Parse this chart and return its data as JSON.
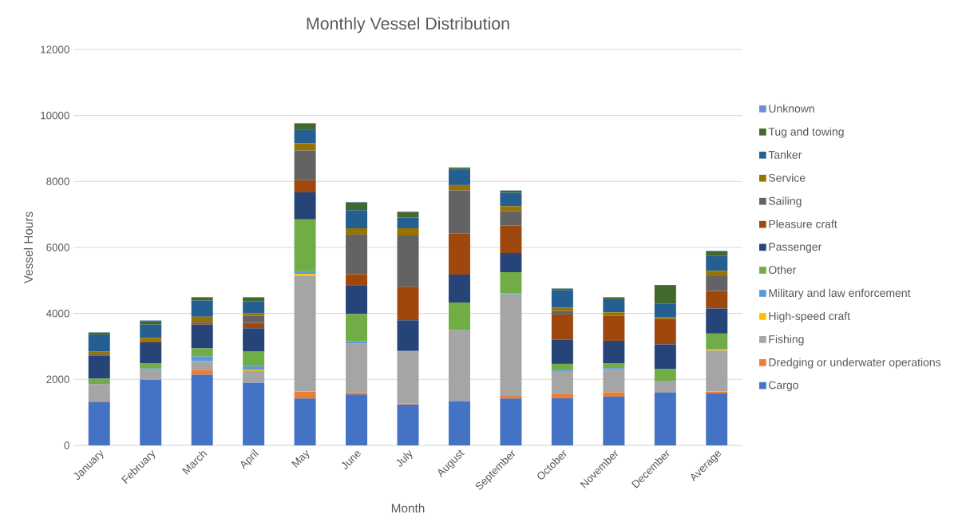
{
  "chart_data": {
    "type": "bar",
    "stacked": true,
    "title": "Monthly Vessel Distribution",
    "xlabel": "Month",
    "ylabel": "Vessel Hours",
    "categories": [
      "January",
      "February",
      "March",
      "April",
      "May",
      "June",
      "July",
      "August",
      "September",
      "October",
      "November",
      "December",
      "Average"
    ],
    "ylim": [
      0,
      12000
    ],
    "yticks": [
      0,
      2000,
      4000,
      6000,
      8000,
      10000,
      12000
    ],
    "grid": "y",
    "legend": "right",
    "series": [
      {
        "name": "Cargo",
        "color": "#4472c4",
        "values": [
          1310,
          1990,
          2140,
          1900,
          1420,
          1540,
          1240,
          1340,
          1420,
          1430,
          1480,
          1600,
          1570
        ]
      },
      {
        "name": "Dredging or underwater operations",
        "color": "#ed7d31",
        "values": [
          20,
          0,
          150,
          0,
          210,
          60,
          30,
          null,
          100,
          120,
          130,
          0,
          60
        ]
      },
      {
        "name": "Fishing",
        "color": "#a5a5a5",
        "values": [
          530,
          300,
          260,
          350,
          3510,
          1480,
          1570,
          2150,
          3060,
          680,
          680,
          360,
          1240
        ]
      },
      {
        "name": "High-speed craft",
        "color": "#ffc000",
        "values": [
          0,
          0,
          0,
          30,
          60,
          0,
          0,
          0,
          0,
          0,
          0,
          0,
          30
        ]
      },
      {
        "name": "Military and law enforcement",
        "color": "#5b9bd5",
        "values": [
          null,
          40,
          150,
          120,
          80,
          80,
          20,
          0,
          30,
          50,
          50,
          0,
          20
        ]
      },
      {
        "name": "Other",
        "color": "#70ad47",
        "values": [
          160,
          150,
          240,
          440,
          1570,
          820,
          0,
          840,
          640,
          190,
          140,
          350,
          470
        ]
      },
      {
        "name": "Passenger",
        "color": "#264478",
        "values": [
          690,
          640,
          720,
          710,
          820,
          860,
          930,
          850,
          580,
          730,
          690,
          750,
          760
        ]
      },
      {
        "name": "Pleasure craft",
        "color": "#9e480e",
        "values": [
          20,
          30,
          50,
          160,
          370,
          350,
          1020,
          1240,
          830,
          770,
          760,
          770,
          530
        ]
      },
      {
        "name": "Sailing",
        "color": "#636363",
        "values": [
          30,
          0,
          40,
          220,
          900,
          1200,
          1550,
          1310,
          440,
          110,
          0,
          0,
          470
        ]
      },
      {
        "name": "Service",
        "color": "#997300",
        "values": [
          80,
          110,
          150,
          80,
          220,
          190,
          220,
          160,
          150,
          100,
          100,
          60,
          140
        ]
      },
      {
        "name": "Tanker",
        "color": "#255e91",
        "values": [
          500,
          400,
          490,
          360,
          400,
          550,
          330,
          460,
          410,
          520,
          400,
          400,
          450
        ]
      },
      {
        "name": "Tug and towing",
        "color": "#43682b",
        "values": [
          70,
          110,
          90,
          120,
          190,
          230,
          160,
          60,
          60,
          50,
          60,
          570,
          140
        ]
      },
      {
        "name": "Unknown",
        "color": "#698ed0",
        "values": [
          20,
          20,
          20,
          null,
          20,
          20,
          20,
          20,
          10,
          10,
          null,
          0,
          20
        ]
      }
    ]
  }
}
